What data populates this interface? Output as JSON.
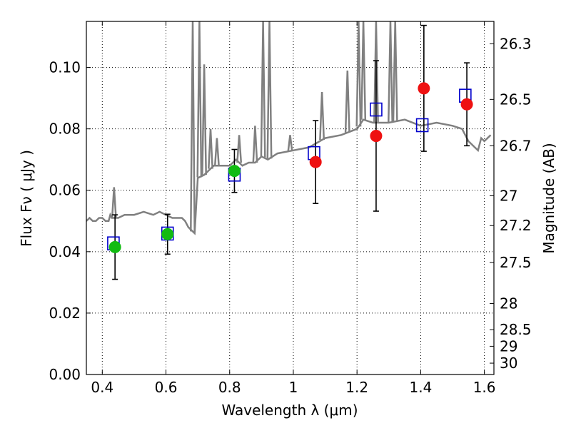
{
  "chart_data": {
    "type": "scatter",
    "xlabel": "Wavelength  λ (μm)",
    "ylabel": "Flux  Fν  ( μJy )",
    "y2label": "Magnitude (AB)",
    "xlim": [
      0.35,
      1.63
    ],
    "ylim": [
      0.0,
      0.115
    ],
    "grid": true,
    "x_ticks": [
      0.4,
      0.6,
      0.8,
      1.0,
      1.2,
      1.4,
      1.6
    ],
    "x_tick_labels": [
      "0.4",
      "0.6",
      "0.8",
      "1",
      "1.2",
      "1.4",
      "1.6"
    ],
    "y_ticks": [
      0.0,
      0.02,
      0.04,
      0.06,
      0.08,
      0.1
    ],
    "y_tick_labels": [
      "0.00",
      "0.02",
      "0.04",
      "0.06",
      "0.08",
      "0.10"
    ],
    "mag_ticks": [
      {
        "label": "26.3",
        "flux": 0.1077
      },
      {
        "label": "26.5",
        "flux": 0.0896
      },
      {
        "label": "26.7",
        "flux": 0.0745
      },
      {
        "label": "27",
        "flux": 0.0582
      },
      {
        "label": "27.2",
        "flux": 0.0485
      },
      {
        "label": "27.5",
        "flux": 0.0365
      },
      {
        "label": "28",
        "flux": 0.0231
      },
      {
        "label": "28.5",
        "flux": 0.0146
      },
      {
        "label": "29",
        "flux": 0.0092
      },
      {
        "label": "30",
        "flux": 0.0037
      }
    ],
    "colors": {
      "spectrum": "#808080",
      "optical_points": "#11bb11",
      "nir_points": "#ee1111",
      "model_boxes": "#0000cc",
      "error_bars": "#000000"
    },
    "series": [
      {
        "type": "line",
        "x": [
          0.35,
          0.36,
          0.37,
          0.38,
          0.39,
          0.4,
          0.41,
          0.42,
          0.425,
          0.43,
          0.435,
          0.44,
          0.45,
          0.47,
          0.5,
          0.53,
          0.56,
          0.58,
          0.6,
          0.62,
          0.64,
          0.65,
          0.66,
          0.67,
          0.68,
          0.69,
          0.7,
          0.72,
          0.73,
          0.75,
          0.77,
          0.8,
          0.82,
          0.84,
          0.86,
          0.88,
          0.9,
          0.92,
          0.95,
          1.0,
          1.05,
          1.1,
          1.15,
          1.2,
          1.22,
          1.25,
          1.3,
          1.35,
          1.4,
          1.45,
          1.5,
          1.53,
          1.55,
          1.57,
          1.58,
          1.59,
          1.6,
          1.62
        ],
        "y": [
          0.05,
          0.051,
          0.05,
          0.05,
          0.051,
          0.051,
          0.05,
          0.05,
          0.052,
          0.051,
          0.051,
          0.051,
          0.051,
          0.052,
          0.052,
          0.053,
          0.052,
          0.053,
          0.052,
          0.051,
          0.051,
          0.051,
          0.05,
          0.048,
          0.047,
          0.046,
          0.064,
          0.065,
          0.066,
          0.068,
          0.068,
          0.068,
          0.07,
          0.068,
          0.069,
          0.069,
          0.071,
          0.07,
          0.072,
          0.073,
          0.074,
          0.077,
          0.078,
          0.08,
          0.083,
          0.082,
          0.082,
          0.083,
          0.081,
          0.082,
          0.081,
          0.08,
          0.076,
          0.074,
          0.073,
          0.077,
          0.076,
          0.078
        ]
      },
      {
        "type": "spikes",
        "x": [
          0.437,
          0.684,
          0.705,
          0.72,
          0.74,
          0.76,
          0.83,
          0.88,
          0.905,
          0.925,
          0.99,
          1.09,
          1.17,
          1.205,
          1.22,
          1.26,
          1.305,
          1.32
        ],
        "y": [
          0.061,
          0.115,
          0.115,
          0.101,
          0.08,
          0.077,
          0.078,
          0.081,
          0.115,
          0.115,
          0.078,
          0.092,
          0.099,
          0.115,
          0.115,
          0.115,
          0.115,
          0.115
        ]
      },
      {
        "type": "scatter",
        "x": [
          0.44,
          0.605,
          0.815
        ],
        "y": [
          0.0415,
          0.0457,
          0.0663
        ],
        "yerr": [
          0.0105,
          0.0065,
          0.007
        ]
      },
      {
        "type": "scatter",
        "x": [
          1.07,
          1.26,
          1.41,
          1.545
        ],
        "y": [
          0.0692,
          0.0777,
          0.0932,
          0.088
        ],
        "yerr": [
          0.0135,
          0.0245,
          0.0205,
          0.0135
        ]
      },
      {
        "type": "scatter",
        "x": [
          0.435,
          0.605,
          0.815,
          1.065,
          1.26,
          1.405,
          1.54
        ],
        "y": [
          0.0427,
          0.0459,
          0.0651,
          0.0721,
          0.0863,
          0.0812,
          0.0908
        ]
      }
    ]
  }
}
